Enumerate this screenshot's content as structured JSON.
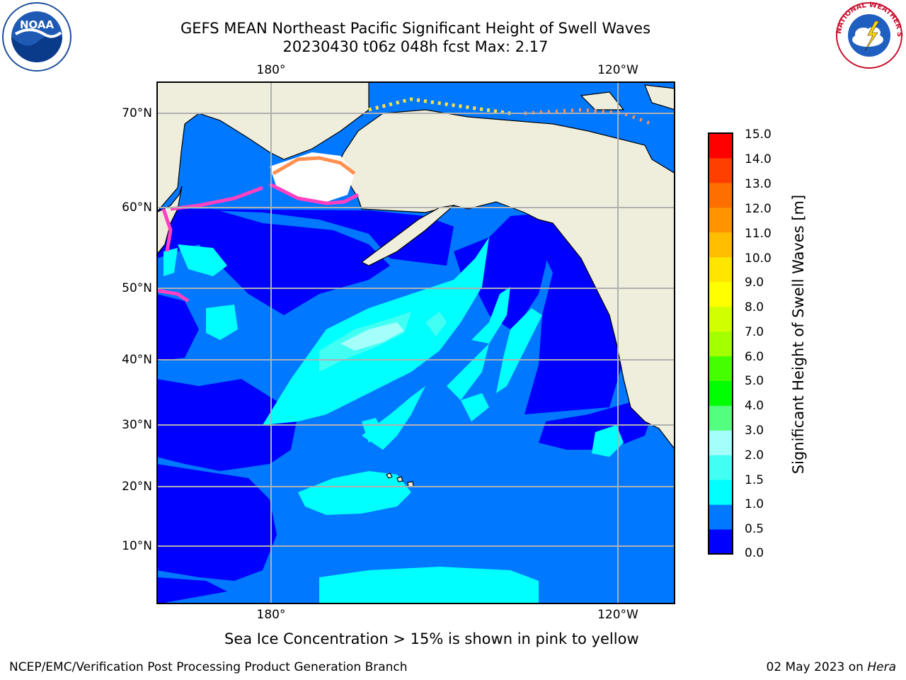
{
  "title": {
    "line1": "GEFS MEAN Northeast Pacific Significant Height of Swell Waves",
    "line2": "20230430 t06z 048h fcst   Max: 2.17"
  },
  "map": {
    "lon_labels": [
      "180°",
      "120°W"
    ],
    "lat_labels": [
      "70°N",
      "60°N",
      "50°N",
      "40°N",
      "30°N",
      "20°N",
      "10°N"
    ],
    "land_color": "#efeedd",
    "ice_colors": [
      "#ff40c0",
      "#ff9050",
      "#ffe040"
    ]
  },
  "colorbar": {
    "label": "Significant Height of Swell Waves [m]",
    "ticks": [
      "15.0",
      "14.0",
      "13.0",
      "12.0",
      "11.0",
      "10.0",
      "9.0",
      "8.0",
      "7.0",
      "6.0",
      "5.0",
      "4.0",
      "3.0",
      "2.0",
      "1.5",
      "1.0",
      "0.5",
      "0.0"
    ],
    "colors_bottom_to_top": [
      "#0000ff",
      "#0078ff",
      "#00ffff",
      "#42fff4",
      "#a4fffa",
      "#52ff7f",
      "#00ff00",
      "#45ff00",
      "#a4ff00",
      "#d2ff00",
      "#ffff00",
      "#ffe600",
      "#ffbf00",
      "#ff9400",
      "#ff6f00",
      "#ff3f00",
      "#ff0000"
    ]
  },
  "ice_note": "Sea Ice Concentration > 15% is shown in pink to yellow",
  "footer": {
    "left": "NCEP/EMC/Verification Post Processing Product Generation Branch",
    "date": "02 May 2023 on",
    "machine": "Hera"
  },
  "logos": {
    "noaa_text": "NOAA",
    "nws_text": "NATIONAL WEATHER SERVICE"
  }
}
